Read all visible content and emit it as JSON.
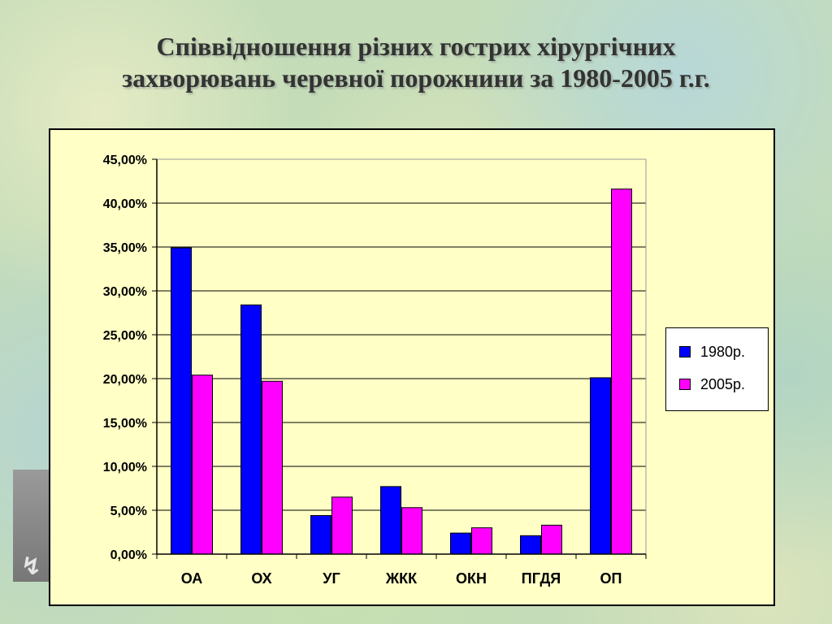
{
  "slide": {
    "title_line1": "Співвідношення різних гострих хірургічних",
    "title_line2": "захворювань черевної порожнини за 1980-2005 г.г."
  },
  "chart_data": {
    "type": "bar",
    "title": "Співвідношення різних гострих хірургічних захворювань черевної порожнини за 1980-2005 г.г.",
    "categories": [
      "ОА",
      "ОХ",
      "УГ",
      "ЖКК",
      "ОКН",
      "ПГДЯ",
      "ОП"
    ],
    "series": [
      {
        "name": "1980р.",
        "color": "#0000ff",
        "values": [
          34.9,
          28.4,
          4.4,
          7.7,
          2.4,
          2.1,
          20.1
        ]
      },
      {
        "name": "2005р.",
        "color": "#ff00ff",
        "values": [
          20.4,
          19.7,
          6.5,
          5.3,
          3.0,
          3.3,
          41.6
        ]
      }
    ],
    "y_ticks": [
      "0,00%",
      "5,00%",
      "10,00%",
      "15,00%",
      "20,00%",
      "25,00%",
      "30,00%",
      "35,00%",
      "40,00%",
      "45,00%"
    ],
    "ylim": [
      0,
      45
    ],
    "y_unit": "%",
    "grid": true,
    "legend_position": "right",
    "plot_background": "#ffffc6"
  }
}
